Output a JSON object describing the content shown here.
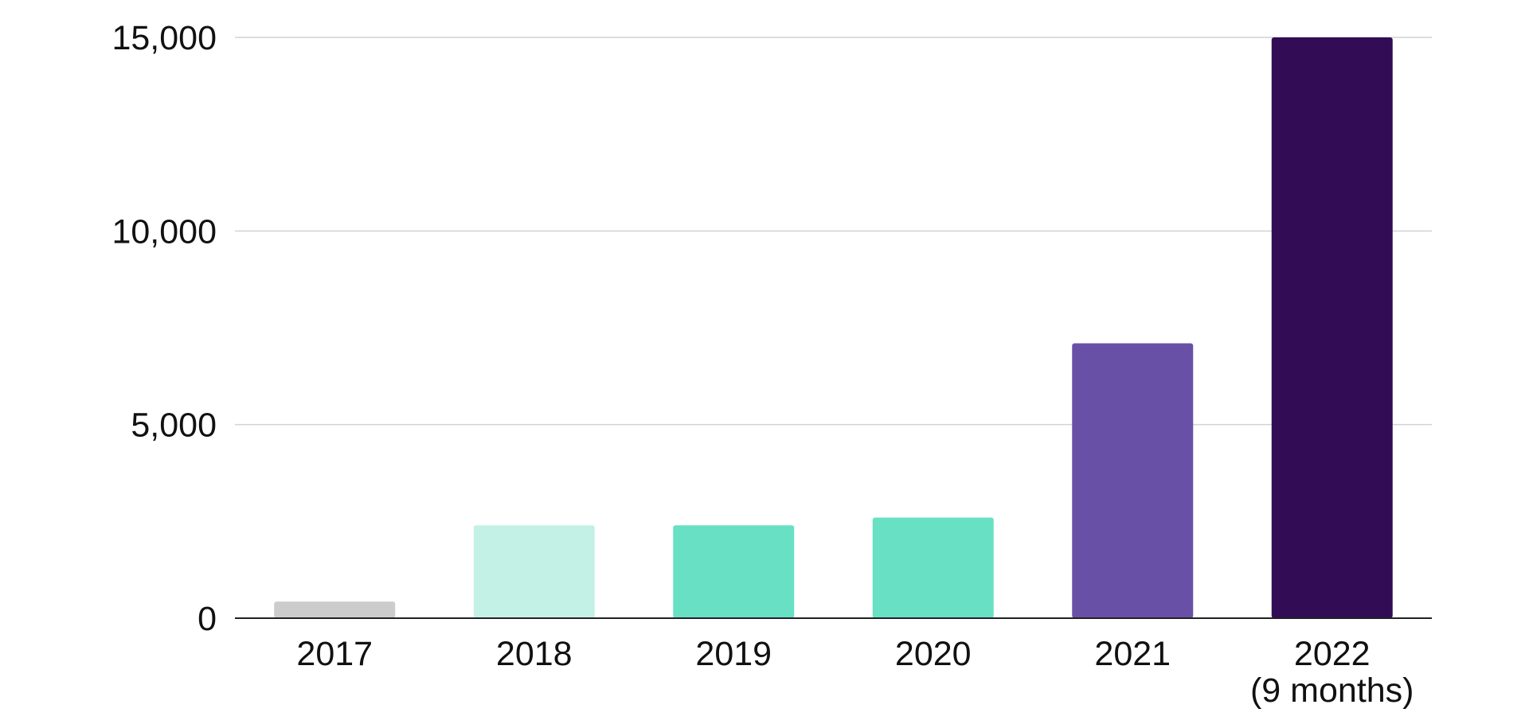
{
  "chart_data": {
    "type": "bar",
    "categories": [
      [
        "2017"
      ],
      [
        "2018"
      ],
      [
        "2019"
      ],
      [
        "2020"
      ],
      [
        "2021"
      ],
      [
        "2022",
        "(9 months)"
      ]
    ],
    "values": [
      430,
      2400,
      2400,
      2600,
      7100,
      15000
    ],
    "colors": [
      "#cccccc",
      "#c4f1e5",
      "#68e0c4",
      "#68e0c4",
      "#6950a7",
      "#330c56"
    ],
    "ylim": [
      0,
      15000
    ],
    "yticks": [
      {
        "value": 0,
        "label": "0"
      },
      {
        "value": 5000,
        "label": "5,000"
      },
      {
        "value": 10000,
        "label": "10,000"
      },
      {
        "value": 15000,
        "label": "15,000"
      }
    ],
    "title": "",
    "xlabel": "",
    "ylabel": "",
    "grid": true,
    "legend": "none"
  }
}
